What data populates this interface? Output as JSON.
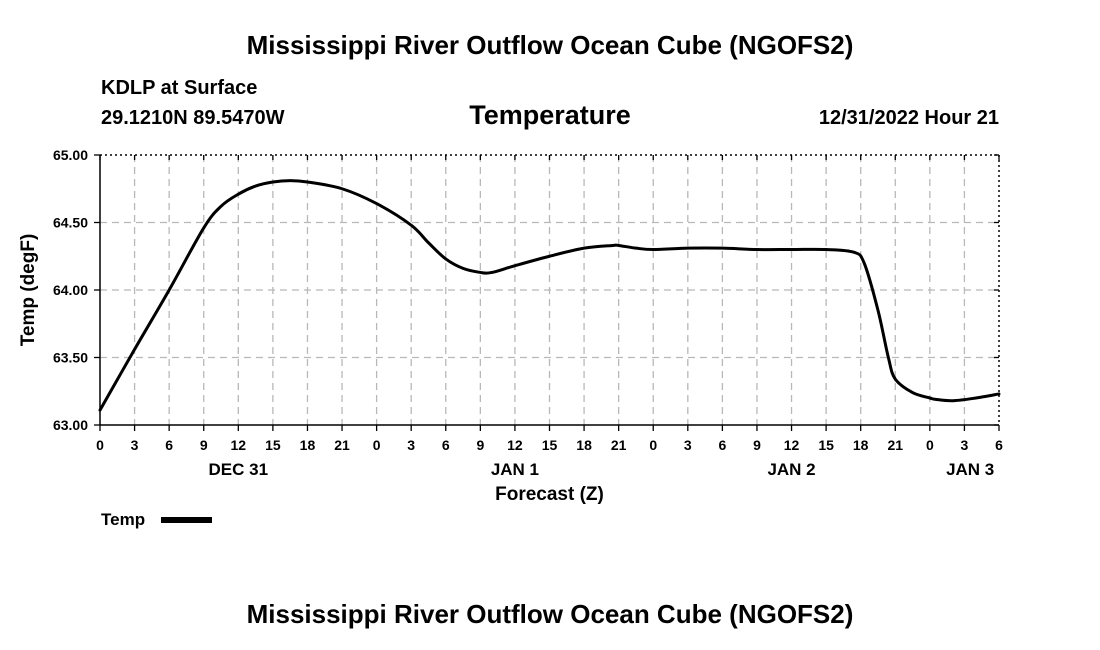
{
  "header": {
    "title": "Mississippi River Outflow Ocean Cube (NGOFS2)",
    "station": "KDLP at Surface",
    "coordinates": "29.1210N  89.5470W",
    "variable": "Temperature",
    "run_time": "12/31/2022 Hour 21"
  },
  "footer": {
    "title": "Mississippi River Outflow Ocean Cube (NGOFS2)"
  },
  "legend": {
    "label": "Temp"
  },
  "chart_data": {
    "type": "line",
    "title": "Temperature",
    "xlabel": "Forecast (Z)",
    "ylabel": "Temp (degF)",
    "xlim": [
      0,
      78
    ],
    "ylim": [
      63.0,
      65.0
    ],
    "grid": true,
    "x_ticks": [
      0,
      3,
      6,
      9,
      12,
      15,
      18,
      21,
      24,
      27,
      30,
      33,
      36,
      39,
      42,
      45,
      48,
      51,
      54,
      57,
      60,
      63,
      66,
      69,
      72,
      75,
      78
    ],
    "x_tick_labels": [
      "0",
      "3",
      "6",
      "9",
      "12",
      "15",
      "18",
      "21",
      "0",
      "3",
      "6",
      "9",
      "12",
      "15",
      "18",
      "21",
      "0",
      "3",
      "6",
      "9",
      "12",
      "15",
      "18",
      "21",
      "0",
      "3",
      "6"
    ],
    "y_ticks": [
      63.0,
      63.5,
      64.0,
      64.5,
      65.0
    ],
    "y_tick_labels": [
      "63.00",
      "63.50",
      "64.00",
      "64.50",
      "65.00"
    ],
    "day_labels": [
      {
        "x": 12,
        "label": "DEC 31"
      },
      {
        "x": 36,
        "label": "JAN 1"
      },
      {
        "x": 60,
        "label": "JAN 2"
      },
      {
        "x": 75.5,
        "label": "JAN 3"
      }
    ],
    "series": [
      {
        "name": "Temp",
        "color": "#000000",
        "x": [
          0,
          3,
          6,
          9,
          10.5,
          12,
          13.5,
          15,
          16.5,
          18,
          21,
          24,
          27,
          28.5,
          30,
          31.5,
          33,
          34,
          36,
          39,
          42,
          44.5,
          45,
          46.5,
          48,
          51,
          54,
          57,
          60,
          63,
          65.4,
          66.3,
          67.5,
          68.4,
          69,
          70.5,
          72,
          72.5,
          74,
          76,
          78
        ],
        "values": [
          63.11,
          63.56,
          64.0,
          64.46,
          64.62,
          64.71,
          64.77,
          64.8,
          64.81,
          64.8,
          64.75,
          64.64,
          64.48,
          64.35,
          64.23,
          64.16,
          64.13,
          64.13,
          64.18,
          64.25,
          64.31,
          64.33,
          64.33,
          64.31,
          64.3,
          64.31,
          64.31,
          64.3,
          64.3,
          64.3,
          64.28,
          64.2,
          63.85,
          63.5,
          63.34,
          63.24,
          63.2,
          63.19,
          63.18,
          63.2,
          63.23
        ]
      }
    ]
  }
}
